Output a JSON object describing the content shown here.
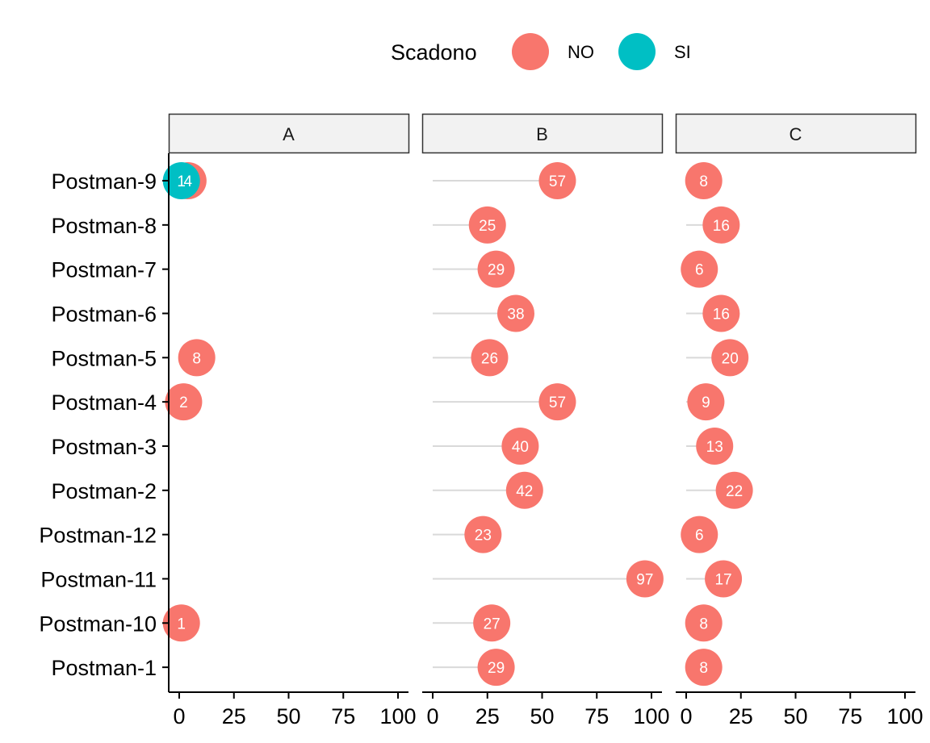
{
  "chart_data": {
    "type": "lollipop",
    "legend": {
      "title": "Scadono",
      "position": "top",
      "entries": [
        {
          "name": "NO",
          "color": "#F8766D"
        },
        {
          "name": "SI",
          "color": "#00BFC4"
        }
      ]
    },
    "categories": [
      "Postman-9",
      "Postman-8",
      "Postman-7",
      "Postman-6",
      "Postman-5",
      "Postman-4",
      "Postman-3",
      "Postman-2",
      "Postman-12",
      "Postman-11",
      "Postman-10",
      "Postman-1"
    ],
    "xlim": [
      0,
      100
    ],
    "xticks": [
      0,
      25,
      50,
      75,
      100
    ],
    "panels": [
      {
        "label": "A",
        "points": [
          {
            "category": "Postman-9",
            "group": "NO",
            "value": 4
          },
          {
            "category": "Postman-9",
            "group": "SI",
            "value": 1
          },
          {
            "category": "Postman-5",
            "group": "NO",
            "value": 8
          },
          {
            "category": "Postman-4",
            "group": "NO",
            "value": 2
          },
          {
            "category": "Postman-10",
            "group": "NO",
            "value": 1
          }
        ]
      },
      {
        "label": "B",
        "points": [
          {
            "category": "Postman-9",
            "group": "NO",
            "value": 57
          },
          {
            "category": "Postman-8",
            "group": "NO",
            "value": 25
          },
          {
            "category": "Postman-7",
            "group": "NO",
            "value": 29
          },
          {
            "category": "Postman-6",
            "group": "NO",
            "value": 38
          },
          {
            "category": "Postman-5",
            "group": "NO",
            "value": 26
          },
          {
            "category": "Postman-4",
            "group": "NO",
            "value": 57
          },
          {
            "category": "Postman-3",
            "group": "NO",
            "value": 40
          },
          {
            "category": "Postman-2",
            "group": "NO",
            "value": 42
          },
          {
            "category": "Postman-12",
            "group": "NO",
            "value": 23
          },
          {
            "category": "Postman-11",
            "group": "NO",
            "value": 97
          },
          {
            "category": "Postman-10",
            "group": "NO",
            "value": 27
          },
          {
            "category": "Postman-1",
            "group": "NO",
            "value": 29
          }
        ]
      },
      {
        "label": "C",
        "points": [
          {
            "category": "Postman-9",
            "group": "NO",
            "value": 8
          },
          {
            "category": "Postman-8",
            "group": "NO",
            "value": 16
          },
          {
            "category": "Postman-7",
            "group": "NO",
            "value": 6
          },
          {
            "category": "Postman-6",
            "group": "NO",
            "value": 16
          },
          {
            "category": "Postman-5",
            "group": "NO",
            "value": 20
          },
          {
            "category": "Postman-4",
            "group": "NO",
            "value": 9
          },
          {
            "category": "Postman-3",
            "group": "NO",
            "value": 13
          },
          {
            "category": "Postman-2",
            "group": "NO",
            "value": 22
          },
          {
            "category": "Postman-12",
            "group": "NO",
            "value": 6
          },
          {
            "category": "Postman-11",
            "group": "NO",
            "value": 17
          },
          {
            "category": "Postman-10",
            "group": "NO",
            "value": 8
          },
          {
            "category": "Postman-1",
            "group": "NO",
            "value": 8
          }
        ]
      }
    ],
    "segment_color": "#D9D9D9",
    "grid": false
  }
}
